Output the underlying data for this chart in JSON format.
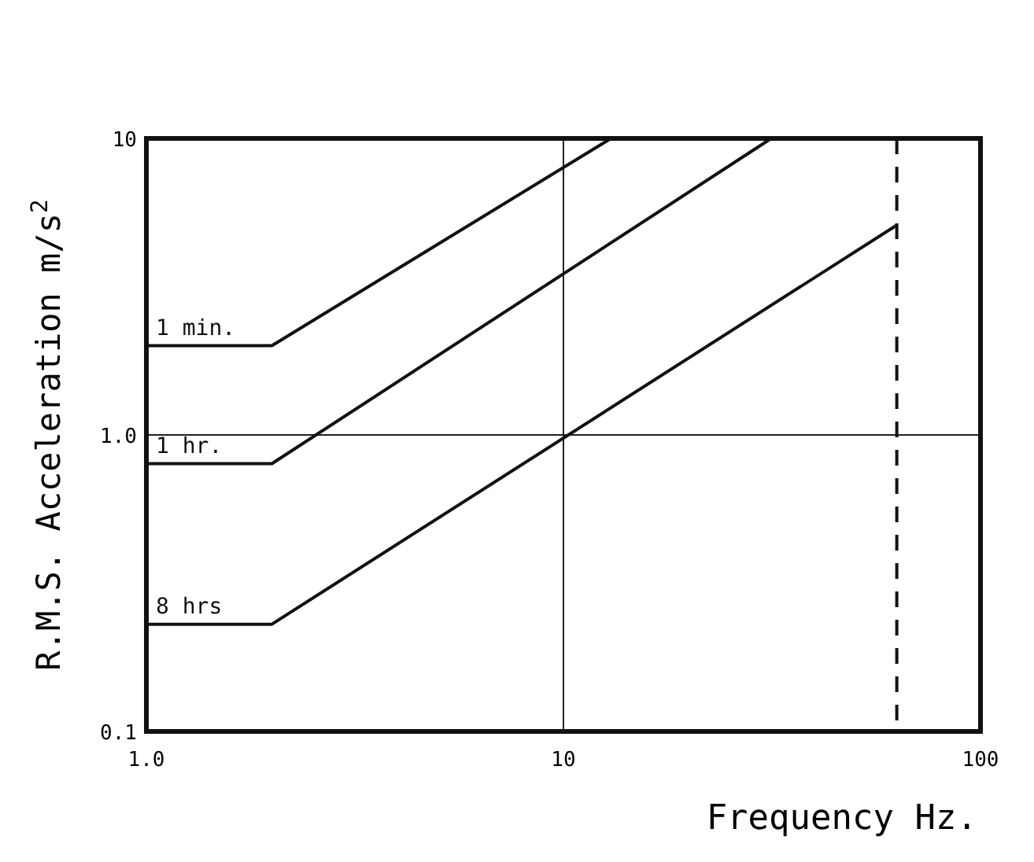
{
  "chart_data": {
    "type": "line",
    "xlabel": "Frequency Hz.",
    "ylabel": "R.M.S. Acceleration m/s$^{2}$",
    "log": "xy",
    "grid": true,
    "xlim": [
      1,
      100
    ],
    "xticks": [
      {
        "value": 1,
        "label": "1.0"
      },
      10,
      100
    ],
    "ylim": [
      0.1,
      10
    ],
    "yticks": [
      0.1,
      {
        "value": 1,
        "label": "1.0"
      },
      10
    ],
    "series": [
      {
        "name": "1 min.",
        "color": "#111111",
        "x": [
          1,
          2,
          13
        ],
        "values": [
          2,
          2,
          10
        ]
      },
      {
        "name": "1 hr.",
        "color": "#111111",
        "x": [
          1,
          2,
          31.5
        ],
        "values": [
          0.8,
          0.8,
          10
        ]
      },
      {
        "name": "8 hrs",
        "color": "#111111",
        "x": [
          1,
          2,
          63
        ],
        "values": [
          0.23,
          0.23,
          5.1
        ]
      }
    ],
    "ref_lines": [
      {
        "axis": "x",
        "value": 63,
        "line_style": "dashed",
        "color": "#111111"
      }
    ]
  }
}
